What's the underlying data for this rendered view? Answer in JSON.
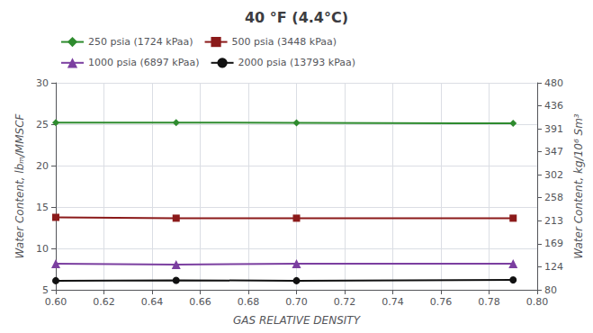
{
  "chart_data": {
    "type": "line",
    "title": "40 °F (4.4°C)",
    "xlabel": "GAS RELATIVE DENSITY",
    "ylabel": "Water Content, lbₘ/MMSCF",
    "y2label": "Water Content, kg/10⁶ Sm³",
    "x": [
      0.6,
      0.65,
      0.7,
      0.79
    ],
    "xlim": [
      0.6,
      0.8
    ],
    "xticks": [
      {
        "value": 0.6,
        "label": "0.60"
      },
      0.62,
      0.64,
      0.66,
      0.68,
      {
        "value": 0.7,
        "label": "0.70"
      },
      0.72,
      0.74,
      0.76,
      0.78,
      {
        "value": 0.8,
        "label": "0.80"
      }
    ],
    "ylim": [
      5,
      30
    ],
    "yticks": [
      5,
      10,
      15,
      20,
      25,
      30
    ],
    "y2lim": [
      80,
      480
    ],
    "y2ticks": [
      80,
      124,
      169,
      213,
      258,
      302,
      347,
      391,
      436,
      480
    ],
    "grid": true,
    "legend": "upper left",
    "series": [
      {
        "name": "250 psia (1724 kPaa)",
        "color": "#2e8b2e",
        "marker": "diamond",
        "values": [
          25.2,
          25.2,
          25.15,
          25.1
        ]
      },
      {
        "name": "500 psia (3448 kPaa)",
        "color": "#8b1a1a",
        "marker": "square",
        "values": [
          13.75,
          13.65,
          13.65,
          13.65
        ]
      },
      {
        "name": "1000 psia (6897 kPaa)",
        "color": "#7b3fa0",
        "marker": "triangle",
        "values": [
          8.15,
          8.05,
          8.15,
          8.15
        ]
      },
      {
        "name": "2000 psia (13793 kPaa)",
        "color": "#111111",
        "marker": "circle",
        "values": [
          6.1,
          6.15,
          6.1,
          6.2
        ]
      }
    ]
  }
}
